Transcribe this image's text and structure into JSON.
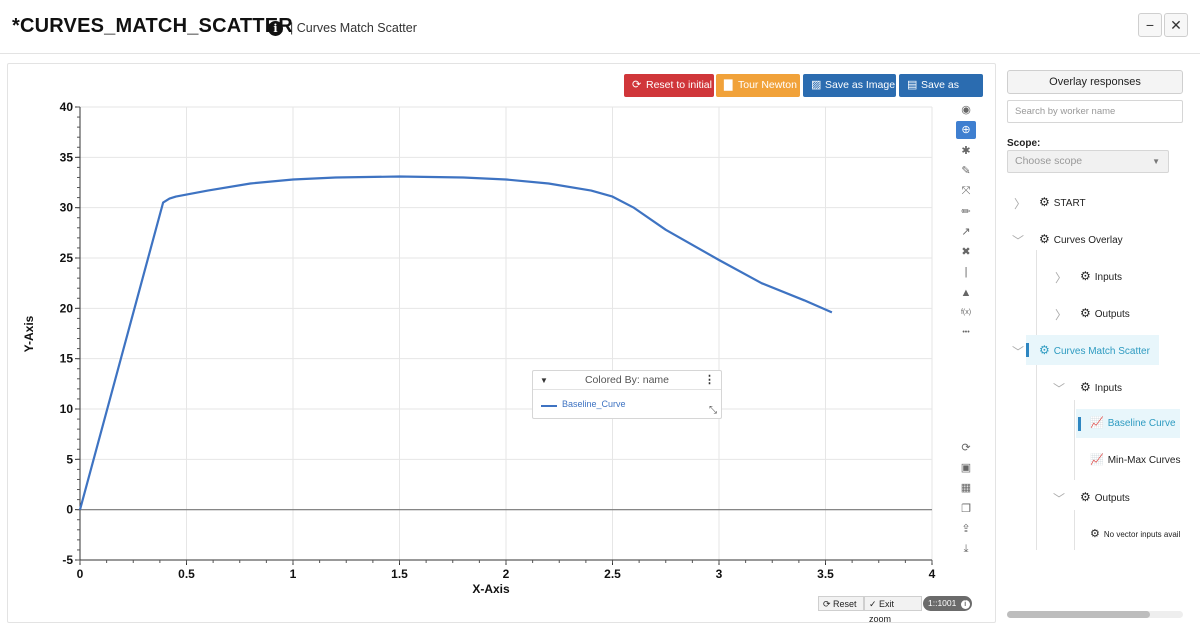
{
  "header": {
    "title": "*CURVES_MATCH_SCATTER",
    "info_glyph": "i",
    "subtitle": "| Curves Match Scatter",
    "minimize": "−",
    "close": "✕"
  },
  "toolbar": {
    "reset_initial": "Reset to initial",
    "tour": "Tour Newton",
    "save_image": "Save as Image",
    "save_csv": "Save as CSV"
  },
  "chart_data": {
    "type": "line",
    "xlabel": "X-Axis",
    "ylabel": "Y-Axis",
    "xlim": [
      0,
      4
    ],
    "ylim": [
      -5,
      40
    ],
    "x_ticks": [
      0,
      0.5,
      1,
      1.5,
      2,
      2.5,
      3,
      3.5,
      4
    ],
    "x_tick_labels": [
      "0",
      "0.5",
      "1",
      "1.5",
      "2",
      "2.5",
      "3",
      "3.5",
      "4"
    ],
    "y_ticks": [
      -5,
      0,
      5,
      10,
      15,
      20,
      25,
      30,
      35,
      40
    ],
    "y_tick_labels": [
      "-5",
      "0",
      "5",
      "10",
      "15",
      "20",
      "25",
      "30",
      "35",
      "40"
    ],
    "grid": true,
    "series": [
      {
        "name": "Baseline_Curve",
        "color": "#3e73c2",
        "x": [
          0,
          0.39,
          0.42,
          0.45,
          0.5,
          0.6,
          0.8,
          1.0,
          1.2,
          1.5,
          1.8,
          2.0,
          2.2,
          2.4,
          2.5,
          2.6,
          2.75,
          3.0,
          3.2,
          3.4,
          3.53
        ],
        "y": [
          0,
          30.5,
          30.9,
          31.1,
          31.3,
          31.7,
          32.4,
          32.8,
          33.0,
          33.1,
          33.0,
          32.8,
          32.4,
          31.7,
          31.1,
          30.0,
          27.8,
          24.8,
          22.5,
          20.8,
          19.6
        ]
      }
    ]
  },
  "legend": {
    "header": "Colored By: name",
    "caret": "▼",
    "menu": "⋮",
    "resize": "⤡",
    "items": [
      "Baseline_Curve"
    ]
  },
  "modebar": [
    {
      "icon": "eye-icon",
      "glyph": "◉"
    },
    {
      "icon": "zoom-icon",
      "glyph": "⊕",
      "active": true
    },
    {
      "icon": "settings-icon",
      "glyph": "✱"
    },
    {
      "icon": "brush-icon",
      "glyph": "✎"
    },
    {
      "icon": "autoscale-icon",
      "glyph": "⤧"
    },
    {
      "icon": "pencil-icon",
      "glyph": "✏"
    },
    {
      "icon": "arrow-icon",
      "glyph": "↗"
    },
    {
      "icon": "tools-icon",
      "glyph": "✖"
    },
    {
      "icon": "separator-icon",
      "glyph": "|"
    },
    {
      "icon": "lock-icon",
      "glyph": "▲"
    },
    {
      "icon": "function-icon",
      "glyph": "f(x)"
    },
    {
      "icon": "more-icon",
      "glyph": "•••"
    }
  ],
  "sidetools": [
    {
      "icon": "refresh-icon",
      "glyph": "⟳"
    },
    {
      "icon": "save-icon",
      "glyph": "▣"
    },
    {
      "icon": "keyboard-icon",
      "glyph": "▦"
    },
    {
      "icon": "copy-icon",
      "glyph": "❐"
    },
    {
      "icon": "upload-icon",
      "glyph": "⇪"
    },
    {
      "icon": "download-icon",
      "glyph": "⤓"
    }
  ],
  "bottom": {
    "reset": "Reset",
    "exit_zoom": "Exit zoom",
    "ratio": "1::1001"
  },
  "sidebar": {
    "overlay_button": "Overlay responses",
    "search_placeholder": "Search by worker name",
    "scope_label": "Scope:",
    "scope_placeholder": "Choose scope",
    "tree": {
      "start": "START",
      "curves_overlay": "Curves Overlay",
      "co_inputs": "Inputs",
      "co_outputs": "Outputs",
      "curves_match_scatter": "Curves Match Scatter",
      "cms_inputs": "Inputs",
      "baseline_curve": "Baseline Curve",
      "minmax_curves": "Min-Max Curves",
      "cms_outputs": "Outputs",
      "no_vector": "No vector inputs avail"
    }
  }
}
